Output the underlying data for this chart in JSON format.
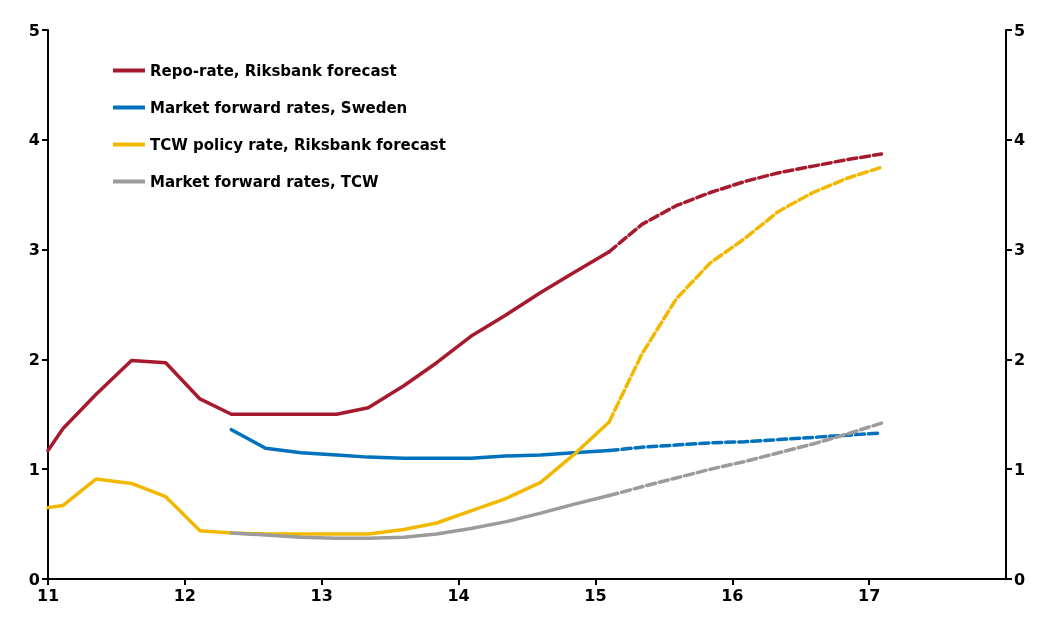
{
  "chart_data": {
    "type": "line",
    "xlim": [
      11,
      18
    ],
    "xticks": [
      11,
      12,
      13,
      14,
      15,
      16,
      17
    ],
    "ylim": [
      0,
      5
    ],
    "yticks": [
      0,
      1,
      2,
      3,
      4,
      5
    ],
    "y2lim": [
      0,
      5
    ],
    "y2ticks": [
      0,
      1,
      2,
      3,
      4,
      5
    ],
    "grid": false,
    "legend": "top left",
    "marker": "none",
    "series": [
      {
        "name": "Repo-rate, Riksbank forecast",
        "color": "#a6192e",
        "line_style": "solid",
        "x": [
          11.0,
          11.11,
          11.35,
          11.61,
          11.86,
          12.11,
          12.34,
          12.59,
          12.85,
          13.11,
          13.34,
          13.6,
          13.84,
          14.09,
          14.34,
          14.6,
          14.84,
          15.1
        ],
        "values": [
          1.17,
          1.37,
          1.68,
          1.99,
          1.97,
          1.64,
          1.5,
          1.5,
          1.5,
          1.5,
          1.56,
          1.76,
          1.97,
          2.21,
          2.4,
          2.61,
          2.79,
          2.98
        ]
      },
      {
        "color": "#a6192e",
        "line_style": "dashed",
        "x": [
          15.1,
          15.34,
          15.59,
          15.84,
          16.09,
          16.34,
          16.59,
          16.84,
          17.09
        ],
        "values": [
          2.98,
          3.23,
          3.4,
          3.52,
          3.62,
          3.7,
          3.76,
          3.82,
          3.87
        ]
      },
      {
        "name": "Market forward rates, Sweden",
        "color": "#0071bc",
        "line_style": "solid",
        "x": [
          12.34,
          12.59,
          12.85,
          13.11,
          13.34,
          13.6,
          13.84,
          14.09,
          14.34,
          14.6,
          14.84,
          15.1
        ],
        "values": [
          1.36,
          1.19,
          1.15,
          1.13,
          1.11,
          1.1,
          1.1,
          1.1,
          1.12,
          1.13,
          1.15,
          1.17
        ]
      },
      {
        "color": "#0071bc",
        "line_style": "dashed",
        "x": [
          15.1,
          15.34,
          15.59,
          15.84,
          16.09,
          16.34,
          16.59,
          16.84,
          17.09
        ],
        "values": [
          1.17,
          1.2,
          1.22,
          1.24,
          1.25,
          1.27,
          1.29,
          1.31,
          1.33
        ]
      },
      {
        "name": "TCW policy rate, Riksbank forecast",
        "color": "#f2b800",
        "line_style": "solid",
        "x": [
          11.0,
          11.11,
          11.35,
          11.61,
          11.86,
          12.11,
          12.34,
          12.59,
          12.85,
          13.11,
          13.34,
          13.6,
          13.84,
          14.09,
          14.34,
          14.6,
          14.84,
          15.1
        ],
        "values": [
          0.65,
          0.67,
          0.91,
          0.87,
          0.75,
          0.44,
          0.42,
          0.41,
          0.41,
          0.41,
          0.41,
          0.45,
          0.51,
          0.62,
          0.73,
          0.88,
          1.13,
          1.43
        ]
      },
      {
        "color": "#f2b800",
        "line_style": "dashed",
        "x": [
          15.1,
          15.34,
          15.59,
          15.84,
          16.09,
          16.34,
          16.59,
          16.84,
          17.09
        ],
        "values": [
          1.43,
          2.05,
          2.55,
          2.88,
          3.1,
          3.35,
          3.52,
          3.65,
          3.75
        ]
      },
      {
        "name": "Market forward rates, TCW",
        "color": "#9b9b9b",
        "line_style": "solid",
        "x": [
          12.34,
          12.59,
          12.85,
          13.11,
          13.34,
          13.6,
          13.84,
          14.09,
          14.34,
          14.6,
          14.84,
          15.1
        ],
        "values": [
          0.42,
          0.4,
          0.38,
          0.37,
          0.37,
          0.38,
          0.41,
          0.46,
          0.52,
          0.6,
          0.68,
          0.76
        ]
      },
      {
        "color": "#9b9b9b",
        "line_style": "dashed",
        "x": [
          15.1,
          15.34,
          15.59,
          15.84,
          16.09,
          16.34,
          16.59,
          16.84,
          17.09
        ],
        "values": [
          0.76,
          0.84,
          0.92,
          1.0,
          1.07,
          1.15,
          1.23,
          1.32,
          1.42
        ]
      }
    ]
  }
}
